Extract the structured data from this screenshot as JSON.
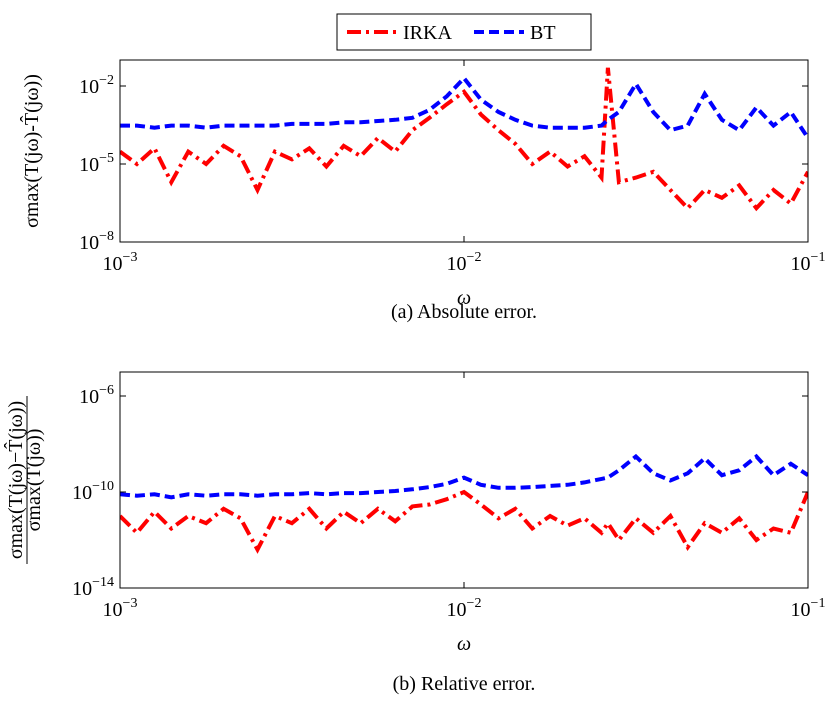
{
  "chart_data": [
    {
      "type": "line",
      "caption": "(a) Absolute error.",
      "xlabel": "ω",
      "ylabel": "σmax(T(jω)-T̂(jω))",
      "xscale": "log",
      "yscale": "log",
      "legend": "top",
      "xlim": [
        0.001,
        0.1
      ],
      "ylim": [
        1e-08,
        0.1
      ],
      "xticks": [
        {
          "value": 0.001,
          "label": "10",
          "exponent": "−3"
        },
        {
          "value": 0.01,
          "label": "10",
          "exponent": "−2"
        },
        {
          "value": 0.1,
          "label": "10",
          "exponent": "−1"
        }
      ],
      "yticks": [
        {
          "value": 1e-08,
          "label": "10",
          "exponent": "−8"
        },
        {
          "value": 1e-05,
          "label": "10",
          "exponent": "−5"
        },
        {
          "value": 0.01,
          "label": "10",
          "exponent": "−2"
        }
      ],
      "x": [
        0.001,
        0.00112,
        0.00126,
        0.00141,
        0.00158,
        0.00178,
        0.002,
        0.00224,
        0.00251,
        0.00282,
        0.00316,
        0.00355,
        0.00398,
        0.00447,
        0.00501,
        0.00562,
        0.00631,
        0.00708,
        0.00794,
        0.00891,
        0.01,
        0.0112,
        0.0126,
        0.0141,
        0.0158,
        0.0178,
        0.02,
        0.0224,
        0.0251,
        0.0262,
        0.0282,
        0.0316,
        0.0355,
        0.0398,
        0.0447,
        0.0501,
        0.0562,
        0.0631,
        0.0708,
        0.0794,
        0.0891,
        0.1
      ],
      "series": [
        {
          "name": "IRKA",
          "color": "#ff0000",
          "dash": "dashdot",
          "values": [
            3e-05,
            1e-05,
            4e-05,
            2e-06,
            3e-05,
            1e-05,
            5e-05,
            2e-05,
            1e-06,
            3e-05,
            1.5e-05,
            4e-05,
            8e-06,
            5e-05,
            2e-05,
            0.0001,
            3e-05,
            0.0002,
            0.0006,
            0.002,
            0.006,
            0.0008,
            0.0002,
            6e-05,
            1e-05,
            3e-05,
            8e-06,
            2e-05,
            3e-06,
            0.05,
            2e-06,
            3e-06,
            5e-06,
            1e-06,
            2e-07,
            1e-06,
            5e-07,
            1.5e-06,
            2e-07,
            1e-06,
            3e-07,
            5e-06
          ]
        },
        {
          "name": "BT",
          "color": "#0000ff",
          "dash": "dashed",
          "values": [
            0.0003,
            0.0003,
            0.00025,
            0.0003,
            0.0003,
            0.00025,
            0.0003,
            0.0003,
            0.0003,
            0.0003,
            0.00035,
            0.00035,
            0.00035,
            0.0004,
            0.0004,
            0.00045,
            0.0005,
            0.0006,
            0.0012,
            0.004,
            0.02,
            0.003,
            0.001,
            0.0005,
            0.0003,
            0.00025,
            0.00025,
            0.00025,
            0.0003,
            0.0005,
            0.001,
            0.012,
            0.001,
            0.0002,
            0.0003,
            0.005,
            0.0005,
            0.0002,
            0.0015,
            0.0003,
            0.001,
            0.0001
          ]
        }
      ]
    },
    {
      "type": "line",
      "caption": "(b) Relative error.",
      "xlabel": "ω",
      "ylabel_numerator": "σmax(T(jω)−T̂(jω))",
      "ylabel_denominator": "σmax(T(jω))",
      "xscale": "log",
      "yscale": "log",
      "xlim": [
        0.001,
        0.1
      ],
      "ylim": [
        1e-14,
        1e-05
      ],
      "xticks": [
        {
          "value": 0.001,
          "label": "10",
          "exponent": "−3"
        },
        {
          "value": 0.01,
          "label": "10",
          "exponent": "−2"
        },
        {
          "value": 0.1,
          "label": "10",
          "exponent": "−1"
        }
      ],
      "yticks": [
        {
          "value": 1e-14,
          "label": "10",
          "exponent": "−14"
        },
        {
          "value": 1e-10,
          "label": "10",
          "exponent": "−10"
        },
        {
          "value": 1e-06,
          "label": "10",
          "exponent": "−6"
        }
      ],
      "x": [
        0.001,
        0.00112,
        0.00126,
        0.00141,
        0.00158,
        0.00178,
        0.002,
        0.00224,
        0.00251,
        0.00282,
        0.00316,
        0.00355,
        0.00398,
        0.00447,
        0.00501,
        0.00562,
        0.00631,
        0.00708,
        0.00794,
        0.00891,
        0.01,
        0.0112,
        0.0126,
        0.0141,
        0.0158,
        0.0178,
        0.02,
        0.0224,
        0.0251,
        0.0262,
        0.0282,
        0.0316,
        0.0355,
        0.0398,
        0.0447,
        0.0501,
        0.0562,
        0.0631,
        0.0708,
        0.0794,
        0.0891,
        0.1
      ],
      "series": [
        {
          "name": "IRKA",
          "color": "#ff0000",
          "dash": "dashdot",
          "values": [
            1e-11,
            2e-12,
            1.5e-11,
            3e-12,
            1e-11,
            5e-12,
            2e-11,
            8e-12,
            4e-13,
            1e-11,
            5e-12,
            2e-11,
            3e-12,
            1.5e-11,
            5e-12,
            2e-11,
            6e-12,
            2.5e-11,
            3e-11,
            5e-11,
            1e-10,
            3e-11,
            8e-12,
            2e-11,
            3e-12,
            1e-11,
            4e-12,
            8e-12,
            2e-12,
            5e-12,
            1e-12,
            8e-12,
            2e-12,
            1e-11,
            5e-13,
            5e-12,
            2e-12,
            8e-12,
            1e-12,
            3e-12,
            2e-12,
            1e-10
          ]
        },
        {
          "name": "BT",
          "color": "#0000ff",
          "dash": "dashed",
          "values": [
            8e-11,
            7e-11,
            8e-11,
            6e-11,
            8e-11,
            7e-11,
            8e-11,
            8e-11,
            7e-11,
            8e-11,
            8e-11,
            9e-11,
            8e-11,
            9e-11,
            9e-11,
            1e-10,
            1.1e-10,
            1.3e-10,
            1.6e-10,
            2.2e-10,
            4e-10,
            2e-10,
            1.5e-10,
            1.5e-10,
            1.6e-10,
            1.8e-10,
            2e-10,
            2.5e-10,
            3.5e-10,
            4e-10,
            8e-10,
            3e-09,
            6e-10,
            3e-10,
            6e-10,
            2.5e-09,
            5e-10,
            8e-10,
            3e-09,
            5e-10,
            1.5e-09,
            5e-10
          ]
        }
      ]
    }
  ]
}
